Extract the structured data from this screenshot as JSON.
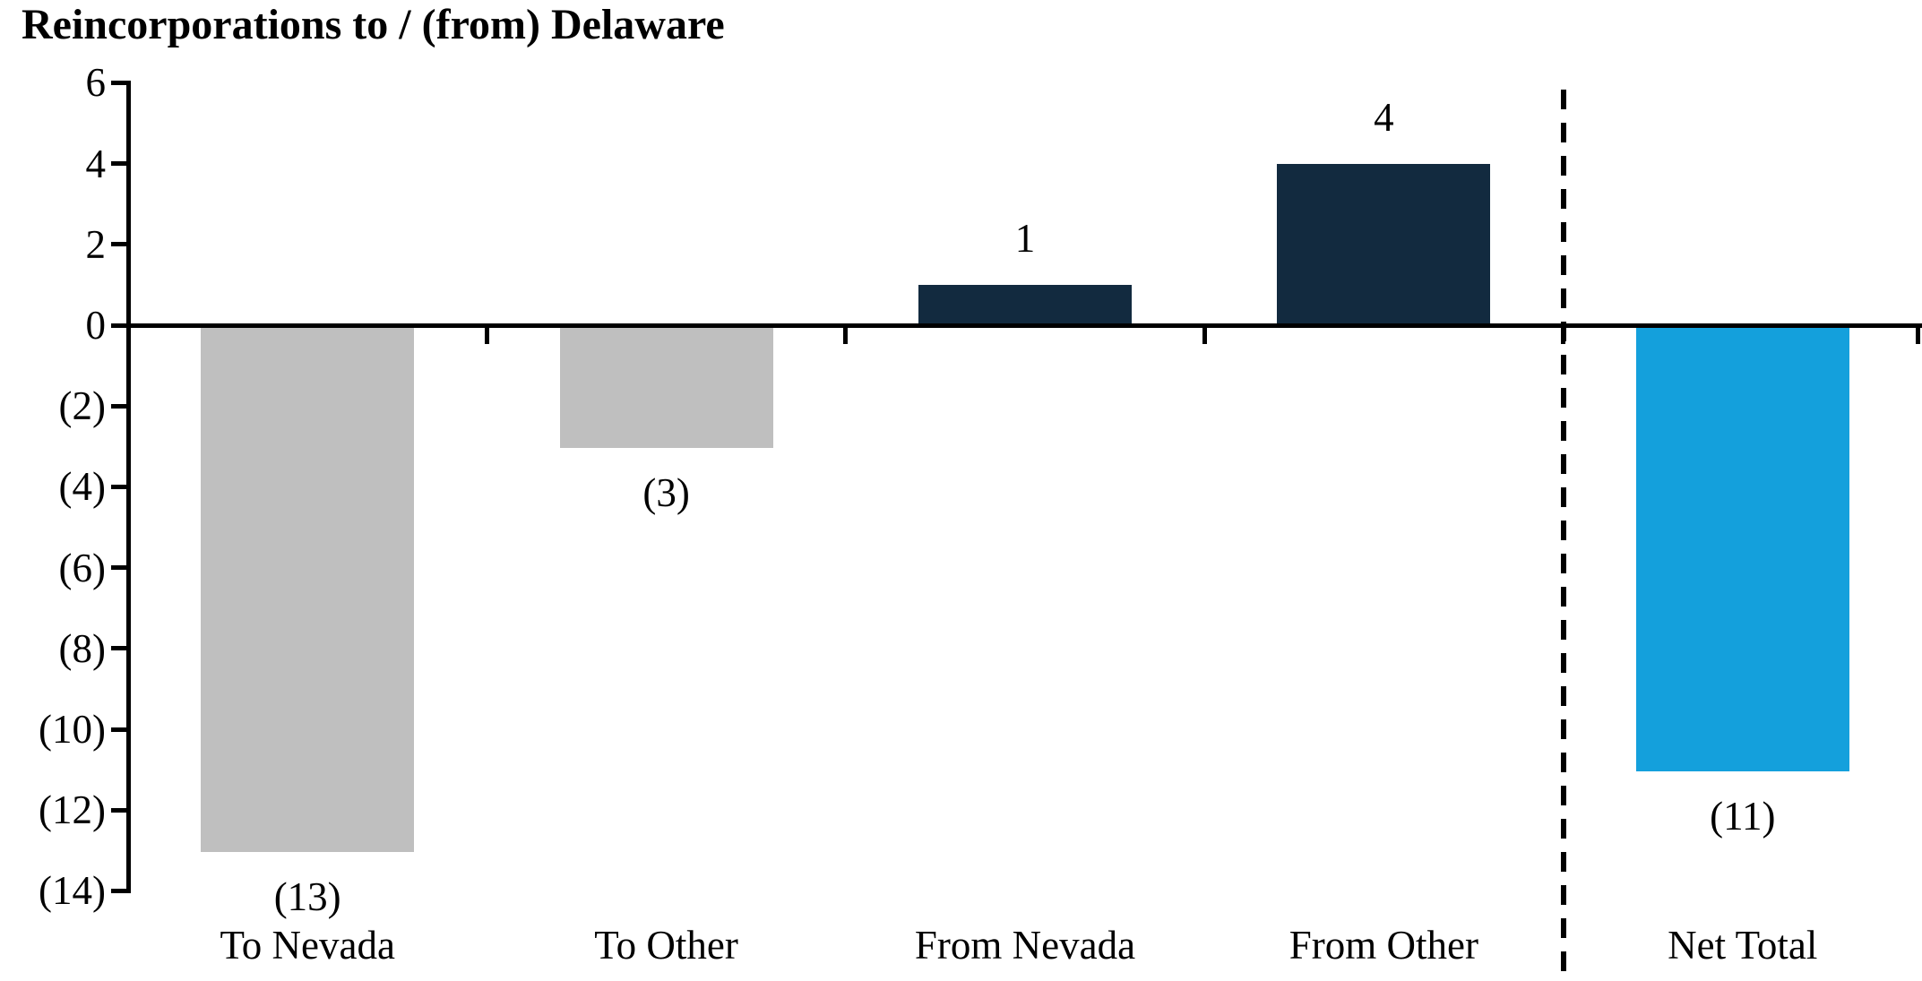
{
  "title": "Reincorporations to / (from) Delaware",
  "chart_data": {
    "type": "bar",
    "title": "Reincorporations to / (from) Delaware",
    "categories": [
      "To Nevada",
      "To Other",
      "From Nevada",
      "From Other",
      "Net Total"
    ],
    "values": [
      -13,
      -3,
      1,
      4,
      -11
    ],
    "bar_labels": [
      "(13)",
      "(3)",
      "1",
      "4",
      "(11)"
    ],
    "bar_colors": [
      "#BFBFBF",
      "#BFBFBF",
      "#122A3F",
      "#122A3F",
      "#14A0DC"
    ],
    "y_ticks": [
      {
        "value": 6,
        "label": "6"
      },
      {
        "value": 4,
        "label": "4"
      },
      {
        "value": 2,
        "label": "2"
      },
      {
        "value": 0,
        "label": "0"
      },
      {
        "value": -2,
        "label": "(2)"
      },
      {
        "value": -4,
        "label": "(4)"
      },
      {
        "value": -6,
        "label": "(6)"
      },
      {
        "value": -8,
        "label": "(8)"
      },
      {
        "value": -10,
        "label": "(10)"
      },
      {
        "value": -12,
        "label": "(12)"
      },
      {
        "value": -14,
        "label": "(14)"
      }
    ],
    "ylim": [
      -14,
      6
    ],
    "xlabel": "",
    "ylabel": "",
    "grid": false,
    "legend": "none",
    "number_format": "negative values shown in parentheses",
    "separator": {
      "after_category": "From Other",
      "style": "vertical-dashed-line"
    },
    "colors": {
      "axis": "#000000",
      "outflow_gray": "#BFBFBF",
      "inflow_navy": "#122A3F",
      "net_total_blue": "#14A0DC"
    }
  }
}
